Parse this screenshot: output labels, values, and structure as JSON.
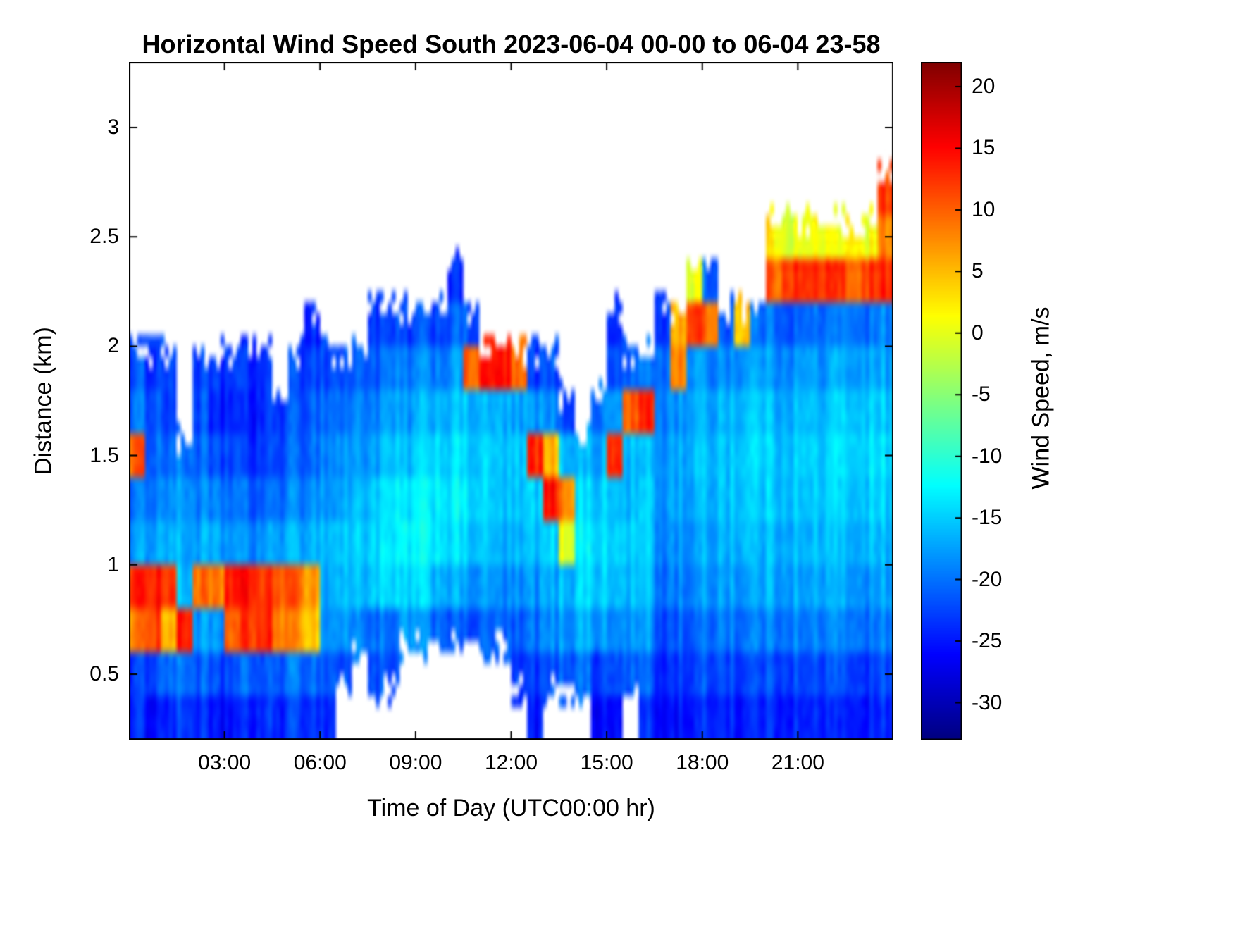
{
  "figure": {
    "background": "#ffffff",
    "frame_color": "#000000",
    "text_color": "#000000"
  },
  "chart_data": {
    "type": "heatmap",
    "title": "Horizontal Wind Speed South 2023-06-04 00-00 to 06-04 23-58",
    "xlabel": "Time of Day (UTC00:00 hr)",
    "ylabel": "Distance (km)",
    "colorbar_label": "Wind Speed, m/s",
    "colormap": "jet",
    "x_range": [
      0,
      24
    ],
    "y_range": [
      0.2,
      3.3
    ],
    "value_range": [
      -33,
      22
    ],
    "grid": false,
    "legend": "colorbar-right",
    "x_ticks": [
      {
        "value": 3,
        "label": "03:00"
      },
      {
        "value": 6,
        "label": "06:00"
      },
      {
        "value": 9,
        "label": "09:00"
      },
      {
        "value": 12,
        "label": "12:00"
      },
      {
        "value": 15,
        "label": "15:00"
      },
      {
        "value": 18,
        "label": "18:00"
      },
      {
        "value": 21,
        "label": "21:00"
      }
    ],
    "y_ticks": [
      {
        "value": 0.5,
        "label": "0.5"
      },
      {
        "value": 1,
        "label": "1"
      },
      {
        "value": 1.5,
        "label": "1.5"
      },
      {
        "value": 2,
        "label": "2"
      },
      {
        "value": 2.5,
        "label": "2.5"
      },
      {
        "value": 3,
        "label": "3"
      }
    ],
    "colorbar_ticks": [
      {
        "value": 20,
        "label": "20"
      },
      {
        "value": 15,
        "label": "15"
      },
      {
        "value": 10,
        "label": "10"
      },
      {
        "value": 5,
        "label": "5"
      },
      {
        "value": 0,
        "label": "0"
      },
      {
        "value": -5,
        "label": "-5"
      },
      {
        "value": -10,
        "label": "-10"
      },
      {
        "value": -15,
        "label": "-15"
      },
      {
        "value": -20,
        "label": "-20"
      },
      {
        "value": -25,
        "label": "-25"
      },
      {
        "value": -30,
        "label": "-30"
      }
    ],
    "time_start_hr": 0,
    "time_step_hr": 0.5,
    "heights_km": [
      0.3,
      0.5,
      0.7,
      0.9,
      1.1,
      1.3,
      1.5,
      1.7,
      1.9,
      2.1,
      2.3,
      2.5,
      2.7,
      2.9,
      3.1,
      3.3
    ],
    "values_layout": "48 half-hour columns (00:00 to 24:00); each column lists wind speed (m/s) for 16 height bins bottom-up (0.2-3.4 km, 0.2 km step); null = no data (white)",
    "wind_speed_grid": [
      [
        -24,
        -23,
        8,
        13,
        -18,
        -20,
        10,
        -20,
        -22,
        null,
        null,
        null,
        null,
        null,
        null,
        null
      ],
      [
        -25,
        -22,
        12,
        14,
        -17,
        -19,
        -20,
        -21,
        -23,
        null,
        null,
        null,
        null,
        null,
        null,
        null
      ],
      [
        -24,
        -20,
        6,
        13,
        -16,
        -18,
        -20,
        -22,
        -22,
        null,
        null,
        null,
        null,
        null,
        null,
        null
      ],
      [
        -23,
        -20,
        14,
        -16,
        -17,
        -18,
        -20,
        null,
        null,
        null,
        null,
        null,
        null,
        null,
        null,
        null
      ],
      [
        -24,
        -21,
        -18,
        9,
        -17,
        -19,
        -21,
        -22,
        -23,
        null,
        null,
        null,
        null,
        null,
        null,
        null
      ],
      [
        -26,
        -23,
        -19,
        8,
        -18,
        -20,
        -23,
        -25,
        -24,
        null,
        null,
        null,
        null,
        null,
        null,
        null
      ],
      [
        -25,
        -22,
        10,
        14,
        -18,
        -20,
        -22,
        -24,
        -23,
        null,
        null,
        null,
        null,
        null,
        null,
        null
      ],
      [
        -25,
        -21,
        12,
        14,
        -19,
        -21,
        -24,
        -25,
        -24,
        null,
        null,
        null,
        null,
        null,
        null,
        null
      ],
      [
        -24,
        -22,
        13,
        12,
        -18,
        -21,
        -23,
        -24,
        -24,
        null,
        null,
        null,
        null,
        null,
        null,
        null
      ],
      [
        -24,
        -21,
        9,
        11,
        -17,
        -20,
        -22,
        -23,
        null,
        null,
        null,
        null,
        null,
        null,
        null,
        null
      ],
      [
        -23,
        -20,
        7,
        10,
        -17,
        -19,
        -21,
        -22,
        -23,
        null,
        null,
        null,
        null,
        null,
        null,
        null
      ],
      [
        -23,
        -20,
        5,
        7,
        -16,
        -18,
        -20,
        -21,
        -22,
        -24,
        null,
        null,
        null,
        null,
        null,
        null
      ],
      [
        -24,
        -21,
        -18,
        -17,
        -16,
        -18,
        -19,
        -20,
        -22,
        null,
        null,
        null,
        null,
        null,
        null,
        null
      ],
      [
        null,
        -22,
        -18,
        -16,
        -15,
        -17,
        -18,
        -20,
        -22,
        null,
        null,
        null,
        null,
        null,
        null,
        null
      ],
      [
        null,
        null,
        -19,
        -16,
        -15,
        -16,
        -18,
        -19,
        -21,
        null,
        null,
        null,
        null,
        null,
        null,
        null
      ],
      [
        null,
        -22,
        -20,
        -15,
        -14,
        -15,
        -17,
        -19,
        -21,
        -23,
        null,
        null,
        null,
        null,
        null,
        null
      ],
      [
        null,
        -23,
        -21,
        -15,
        -14,
        -14,
        -16,
        -18,
        -20,
        -23,
        null,
        null,
        null,
        null,
        null,
        null
      ],
      [
        null,
        null,
        -18,
        -15,
        -13,
        -14,
        -16,
        -18,
        -20,
        -23,
        null,
        null,
        null,
        null,
        null,
        null
      ],
      [
        null,
        null,
        -19,
        -15,
        -13,
        -13,
        -15,
        -17,
        -19,
        -22,
        null,
        null,
        null,
        null,
        null,
        null
      ],
      [
        null,
        null,
        -20,
        -16,
        -13,
        -13,
        -14,
        -16,
        -19,
        -22,
        null,
        null,
        null,
        null,
        null,
        null
      ],
      [
        null,
        null,
        -21,
        -17,
        -14,
        -13,
        -14,
        -16,
        -18,
        -21,
        -24,
        null,
        null,
        null,
        null,
        null
      ],
      [
        null,
        null,
        -22,
        -18,
        -15,
        -14,
        -15,
        -16,
        10,
        -22,
        null,
        null,
        null,
        null,
        null,
        null
      ],
      [
        null,
        null,
        -21,
        -18,
        -16,
        -15,
        -15,
        -17,
        14,
        null,
        null,
        null,
        null,
        null,
        null,
        null
      ],
      [
        null,
        null,
        -21,
        -19,
        -17,
        -16,
        -16,
        -17,
        14,
        null,
        null,
        null,
        null,
        null,
        null,
        null
      ],
      [
        null,
        -24,
        -22,
        -19,
        -17,
        -16,
        -16,
        -18,
        9,
        null,
        null,
        null,
        null,
        null,
        null,
        null
      ],
      [
        -25,
        -23,
        -20,
        -18,
        -16,
        -15,
        13,
        -18,
        -23,
        null,
        null,
        null,
        null,
        null,
        null,
        null
      ],
      [
        null,
        -22,
        -19,
        -17,
        -15,
        14,
        5,
        -19,
        -22,
        null,
        null,
        null,
        null,
        null,
        null,
        null
      ],
      [
        null,
        -21,
        -18,
        -16,
        0,
        8,
        -16,
        -22,
        null,
        null,
        null,
        null,
        null,
        null,
        null,
        null
      ],
      [
        null,
        -20,
        -16,
        -14,
        -13,
        -14,
        -16,
        null,
        null,
        null,
        null,
        null,
        null,
        null,
        null,
        null
      ],
      [
        -26,
        -23,
        -18,
        -15,
        -14,
        -15,
        -17,
        -20,
        null,
        null,
        null,
        null,
        null,
        null,
        null,
        null
      ],
      [
        -26,
        -22,
        -19,
        -16,
        -15,
        -16,
        13,
        -18,
        -22,
        -24,
        null,
        null,
        null,
        null,
        null,
        null
      ],
      [
        null,
        -21,
        -18,
        -16,
        -15,
        -16,
        -16,
        10,
        -21,
        null,
        null,
        null,
        null,
        null,
        null,
        null
      ],
      [
        -24,
        -21,
        -18,
        -16,
        -15,
        -15,
        -16,
        13,
        -20,
        null,
        null,
        null,
        null,
        null,
        null,
        null
      ],
      [
        -26,
        -24,
        -22,
        -20,
        -19,
        -18,
        -18,
        -19,
        -20,
        -23,
        null,
        null,
        null,
        null,
        null,
        null
      ],
      [
        -25,
        -23,
        -21,
        -19,
        -18,
        -17,
        -17,
        -18,
        8,
        6,
        null,
        null,
        null,
        null,
        null,
        null
      ],
      [
        -25,
        -23,
        -21,
        -19,
        -18,
        -17,
        -16,
        -17,
        -18,
        12,
        0,
        null,
        null,
        null,
        null,
        null
      ],
      [
        -24,
        -22,
        -20,
        -18,
        -17,
        -16,
        -16,
        -17,
        -19,
        9,
        -21,
        null,
        null,
        null,
        null,
        null
      ],
      [
        -24,
        -22,
        -19,
        -17,
        -16,
        -15,
        -15,
        -16,
        -18,
        -21,
        null,
        null,
        null,
        null,
        null,
        null
      ],
      [
        -25,
        -23,
        -20,
        -18,
        -16,
        -15,
        -15,
        -16,
        -18,
        5,
        null,
        null,
        null,
        null,
        null,
        null
      ],
      [
        -24,
        -22,
        -19,
        -17,
        -16,
        -15,
        -14,
        -15,
        -17,
        -20,
        null,
        null,
        null,
        null,
        null,
        null
      ],
      [
        -24,
        -22,
        -19,
        -17,
        -16,
        -15,
        -15,
        -16,
        -18,
        -20,
        10,
        2,
        null,
        null,
        null,
        null
      ],
      [
        -24,
        -22,
        -19,
        -17,
        -16,
        -15,
        -15,
        -16,
        -18,
        -21,
        13,
        0,
        null,
        null,
        null,
        null
      ],
      [
        -25,
        -23,
        -20,
        -18,
        -17,
        -16,
        -15,
        -16,
        -18,
        -21,
        12,
        0,
        null,
        null,
        null,
        null
      ],
      [
        -24,
        -22,
        -19,
        -17,
        -16,
        -15,
        -15,
        -16,
        -18,
        -20,
        13,
        1,
        null,
        null,
        null,
        null
      ],
      [
        -25,
        -22,
        -19,
        -17,
        -16,
        -15,
        -14,
        -15,
        -17,
        -20,
        12,
        0,
        null,
        null,
        null,
        null
      ],
      [
        -24,
        -22,
        -19,
        -17,
        -16,
        -15,
        -14,
        -15,
        -17,
        -19,
        10,
        3,
        null,
        null,
        null,
        null
      ],
      [
        -25,
        -23,
        -20,
        -18,
        -16,
        -15,
        -14,
        -15,
        -17,
        -20,
        12,
        1,
        null,
        null,
        null,
        null
      ],
      [
        -24,
        -22,
        -19,
        -17,
        -16,
        -15,
        -14,
        -15,
        -17,
        -19,
        13,
        8,
        12,
        null,
        null,
        null
      ]
    ]
  }
}
